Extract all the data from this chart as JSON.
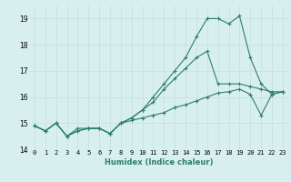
{
  "xlabel": "Humidex (Indice chaleur)",
  "x_values": [
    0,
    1,
    2,
    3,
    4,
    5,
    6,
    7,
    8,
    9,
    10,
    11,
    12,
    13,
    14,
    15,
    16,
    17,
    18,
    19,
    20,
    21,
    22,
    23
  ],
  "line1_y": [
    14.9,
    14.7,
    15.0,
    14.5,
    14.7,
    14.8,
    14.8,
    14.6,
    15.0,
    15.1,
    15.2,
    15.3,
    15.4,
    15.6,
    15.7,
    15.85,
    16.0,
    16.15,
    16.2,
    16.3,
    16.1,
    15.3,
    16.1,
    16.2
  ],
  "line2_y": [
    14.9,
    14.7,
    15.0,
    14.5,
    14.7,
    14.8,
    14.8,
    14.6,
    15.0,
    15.2,
    15.5,
    15.8,
    16.3,
    16.7,
    17.1,
    17.5,
    17.75,
    16.5,
    16.5,
    16.5,
    16.4,
    16.3,
    16.2,
    16.2
  ],
  "line3_y": [
    14.9,
    14.7,
    15.0,
    14.5,
    14.8,
    14.8,
    14.8,
    14.6,
    15.0,
    15.2,
    15.5,
    16.0,
    16.5,
    17.0,
    17.5,
    18.3,
    19.0,
    19.0,
    18.8,
    19.1,
    17.5,
    16.5,
    16.1,
    16.2
  ],
  "line_color": "#2e7d6e",
  "bg_color": "#d8efef",
  "grid_color": "#c8dede",
  "ylim": [
    14.0,
    19.5
  ],
  "yticks": [
    14,
    15,
    16,
    17,
    18,
    19
  ],
  "xticks": [
    0,
    1,
    2,
    3,
    4,
    5,
    6,
    7,
    8,
    9,
    10,
    11,
    12,
    13,
    14,
    15,
    16,
    17,
    18,
    19,
    20,
    21,
    22,
    23
  ],
  "marker": "+",
  "marker_size": 3,
  "linewidth": 0.8,
  "tick_fontsize": 5.0,
  "xlabel_fontsize": 6.0
}
